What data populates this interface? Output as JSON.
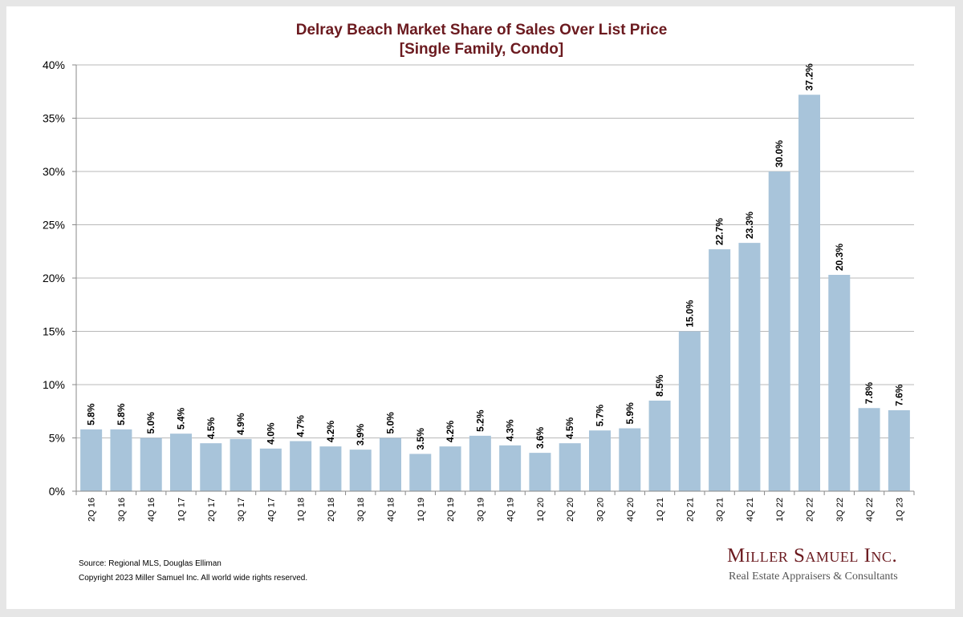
{
  "chart_data": {
    "type": "bar",
    "title": "Delray Beach Market Share of Sales Over List Price",
    "subtitle": "[Single Family, Condo]",
    "categories": [
      "2Q 16",
      "3Q 16",
      "4Q 16",
      "1Q 17",
      "2Q 17",
      "3Q 17",
      "4Q 17",
      "1Q 18",
      "2Q 18",
      "3Q 18",
      "4Q 18",
      "1Q 19",
      "2Q 19",
      "3Q 19",
      "4Q 19",
      "1Q 20",
      "2Q 20",
      "3Q 20",
      "4Q 20",
      "1Q 21",
      "2Q 21",
      "3Q 21",
      "4Q 21",
      "1Q 22",
      "2Q 22",
      "3Q 22",
      "4Q 22",
      "1Q 23"
    ],
    "values": [
      5.8,
      5.8,
      5.0,
      5.4,
      4.5,
      4.9,
      4.0,
      4.7,
      4.2,
      3.9,
      5.0,
      3.5,
      4.2,
      5.2,
      4.3,
      3.6,
      4.5,
      5.7,
      5.9,
      8.5,
      15.0,
      22.7,
      23.3,
      30.0,
      37.2,
      20.3,
      7.8,
      7.6
    ],
    "data_labels": [
      "5.8%",
      "5.8%",
      "5.0%",
      "5.4%",
      "4.5%",
      "4.9%",
      "4.0%",
      "4.7%",
      "4.2%",
      "3.9%",
      "5.0%",
      "3.5%",
      "4.2%",
      "5.2%",
      "4.3%",
      "3.6%",
      "4.5%",
      "5.7%",
      "5.9%",
      "8.5%",
      "15.0%",
      "22.7%",
      "23.3%",
      "30.0%",
      "37.2%",
      "20.3%",
      "7.8%",
      "7.6%"
    ],
    "yticks": [
      "0%",
      "5%",
      "10%",
      "15%",
      "20%",
      "25%",
      "30%",
      "35%",
      "40%"
    ],
    "ylim": [
      0,
      40
    ],
    "grid": true,
    "legend": "none",
    "bar_color": "#a8c4da"
  },
  "footer": {
    "source": "Source: Regional MLS, Douglas Elliman",
    "copyright": "Copyright 2023 Miller Samuel Inc.  All world wide rights reserved."
  },
  "logo": {
    "name": "Miller Samuel Inc.",
    "tagline": "Real Estate Appraisers & Consultants"
  }
}
